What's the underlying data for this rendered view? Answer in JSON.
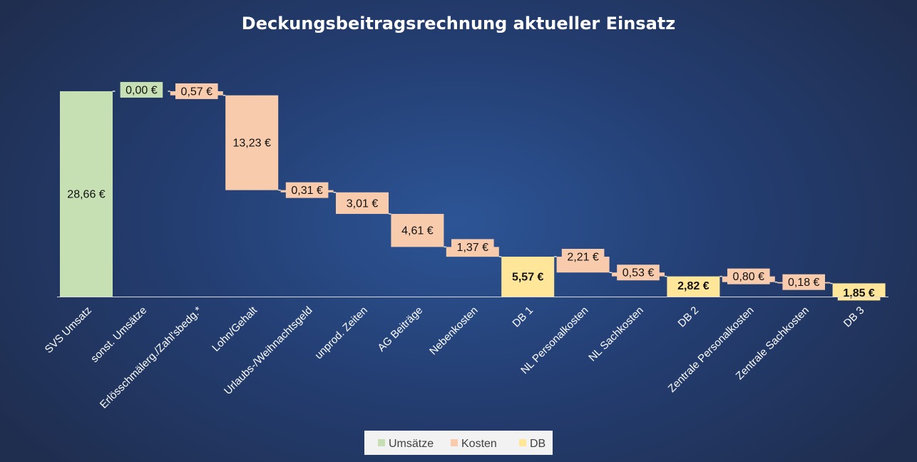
{
  "colors": {
    "Umsätze": "#c6e0b4",
    "Kosten": "#f8cbad",
    "DB": "#ffe699",
    "connector": "#e6e6e6",
    "baseline": "#d9d9d9"
  },
  "chart_data": {
    "type": "bar",
    "subtype": "waterfall",
    "title": "Deckungsbeitragsrechnung aktueller Einsatz",
    "xlabel": "",
    "ylabel": "",
    "grid": false,
    "legend_position": "bottom",
    "legend": [
      "Umsätze",
      "Kosten",
      "DB"
    ],
    "categories": [
      "SVS Umsatz",
      "sonst. Umsätze",
      "Erlösschmälerg./Zahl'sbedg.*",
      "Lohn/Gehalt",
      "Urlaubs-/Weihnachtsgeld",
      "unprod. Zeiten",
      "AG Beiträge",
      "Nebenkosten",
      "DB 1",
      "NL Personalkosten",
      "NL Sachkosten",
      "DB 2",
      "Zentrale Personalkosten",
      "Zentrale Sachkosten",
      "DB 3"
    ],
    "values": [
      28.66,
      0.0,
      0.57,
      13.23,
      0.31,
      3.01,
      4.61,
      1.37,
      5.57,
      2.21,
      0.53,
      2.82,
      0.8,
      0.18,
      1.85
    ],
    "kinds": [
      "Umsätze",
      "Umsätze",
      "Kosten",
      "Kosten",
      "Kosten",
      "Kosten",
      "Kosten",
      "Kosten",
      "DB",
      "Kosten",
      "Kosten",
      "DB",
      "Kosten",
      "Kosten",
      "DB"
    ],
    "labels": [
      "28,66 €",
      "0,00 €",
      "0,57 €",
      "13,23 €",
      "0,31 €",
      "3,01 €",
      "4,61 €",
      "1,37 €",
      "5,57 €",
      "2,21 €",
      "0,53 €",
      "2,82 €",
      "0,80 €",
      "0,18 €",
      "1,85 €"
    ]
  }
}
